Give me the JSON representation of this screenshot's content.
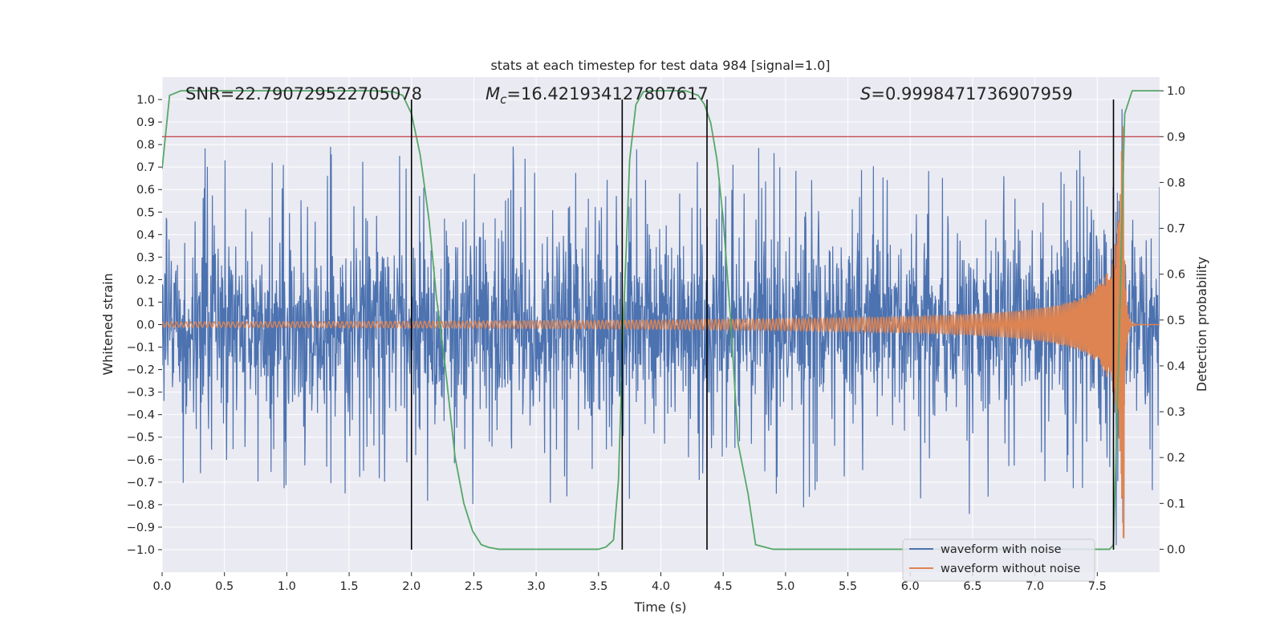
{
  "chart_data": {
    "type": "line",
    "title": "stats at each timestep for test data 984 [signal=1.0]",
    "xlabel": "Time (s)",
    "ylabel": "Whitened strain",
    "y2label": "Detection probability",
    "xlim": [
      0,
      8.0
    ],
    "ylim": [
      -1.1,
      1.1
    ],
    "y2lim": [
      -0.05,
      1.03
    ],
    "x_ticks": [
      "0.0",
      "0.5",
      "1.0",
      "1.5",
      "2.0",
      "2.5",
      "3.0",
      "3.5",
      "4.0",
      "4.5",
      "5.0",
      "5.5",
      "6.0",
      "6.5",
      "7.0",
      "7.5"
    ],
    "y_ticks": [
      "1.0",
      "0.9",
      "0.8",
      "0.7",
      "0.6",
      "0.5",
      "0.4",
      "0.3",
      "0.2",
      "0.1",
      "0.0",
      "−0.1",
      "−0.2",
      "−0.3",
      "−0.4",
      "−0.5",
      "−0.6",
      "−0.7",
      "−0.8",
      "−0.9",
      "−1.0"
    ],
    "y2_ticks": [
      "1.0",
      "0.9",
      "0.8",
      "0.7",
      "0.6",
      "0.5",
      "0.4",
      "0.3",
      "0.2",
      "0.1",
      "0.0"
    ],
    "annotations": {
      "snr": "SNR=22.790729522705078",
      "mc_symbol": "M",
      "mc_sub": "c",
      "mc_value": "=16.421934127807617",
      "s_symbol": "S",
      "s_value": "=0.9998471736907959"
    },
    "threshold_y2": 0.9,
    "vertical_lines_x": [
      2.0,
      3.69,
      4.37,
      7.63
    ],
    "series": [
      {
        "name": "waveform with noise",
        "color": "#4c72b0",
        "noise_envelope": [
          [
            0,
            0.42
          ],
          [
            7.6,
            0.47
          ],
          [
            8.0,
            0.42
          ]
        ],
        "peak_extent": 0.98
      },
      {
        "name": "waveform without noise",
        "color": "#dd8452",
        "chirp_start_amp": 0.012,
        "chirp_merger_x": 7.72,
        "chirp_peak_amp": 0.95
      },
      {
        "name": "detection probability",
        "color": "#55a868",
        "x": [
          0.0,
          0.06,
          0.15,
          0.3,
          0.6,
          1.0,
          1.4,
          1.7,
          1.85,
          1.93,
          2.0,
          2.07,
          2.14,
          2.2,
          2.27,
          2.35,
          2.42,
          2.49,
          2.56,
          2.62,
          2.7,
          3.0,
          3.3,
          3.5,
          3.56,
          3.62,
          3.66,
          3.7,
          3.75,
          3.8,
          3.86,
          3.93,
          4.0,
          4.2,
          4.3,
          4.35,
          4.4,
          4.45,
          4.5,
          4.56,
          4.62,
          4.7,
          4.76,
          4.9,
          5.4,
          6.0,
          7.0,
          7.4,
          7.5,
          7.55,
          7.6,
          7.63,
          7.67,
          7.72,
          7.78,
          8.0
        ],
        "y": [
          0.83,
          0.99,
          1.0,
          1.0,
          1.0,
          1.0,
          1.0,
          1.0,
          0.998,
          0.99,
          0.95,
          0.86,
          0.72,
          0.55,
          0.4,
          0.2,
          0.1,
          0.04,
          0.01,
          0.004,
          0.0,
          0.0,
          0.0,
          0.0,
          0.005,
          0.02,
          0.15,
          0.5,
          0.85,
          0.97,
          0.998,
          1.0,
          1.0,
          1.0,
          0.99,
          0.97,
          0.93,
          0.85,
          0.72,
          0.5,
          0.23,
          0.12,
          0.01,
          0.0,
          0.0,
          0.0,
          0.0,
          0.0,
          0.0,
          0.0,
          0.0,
          0.01,
          0.4,
          0.95,
          1.0,
          1.0
        ]
      }
    ],
    "legend": {
      "position": "lower-right",
      "entries": [
        "waveform with noise",
        "waveform without noise"
      ]
    }
  },
  "colors": {
    "noise": "#4c72b0",
    "clean": "#dd8452",
    "prob": "#55a868",
    "threshold": "#c44e52",
    "vline": "#000000",
    "background": "#eaeaf2",
    "grid": "#ffffff"
  }
}
